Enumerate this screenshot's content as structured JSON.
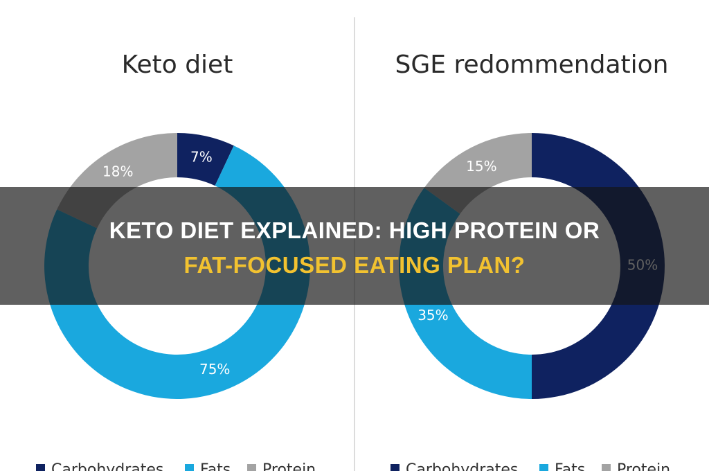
{
  "chart_data": [
    {
      "type": "donut",
      "title": "Keto diet",
      "categories": [
        "Carbohydrates",
        "Fats",
        "Protein"
      ],
      "values": [
        7,
        75,
        18
      ],
      "value_labels": [
        "7%",
        "75%",
        "18%"
      ],
      "colors": [
        "#0f2260",
        "#1aa8de",
        "#a3a3a3"
      ]
    },
    {
      "type": "donut",
      "title": "SGE redommendation",
      "categories": [
        "Carbohydrates",
        "Fats",
        "Protein"
      ],
      "values": [
        50,
        35,
        15
      ],
      "value_labels": [
        "50%",
        "35%",
        "15%"
      ],
      "colors": [
        "#0f2260",
        "#1aa8de",
        "#a3a3a3"
      ]
    }
  ],
  "overlay": {
    "line1": "KETO DIET EXPLAINED: HIGH PROTEIN OR",
    "line2": "FAT-FOCUSED EATING PLAN?"
  }
}
